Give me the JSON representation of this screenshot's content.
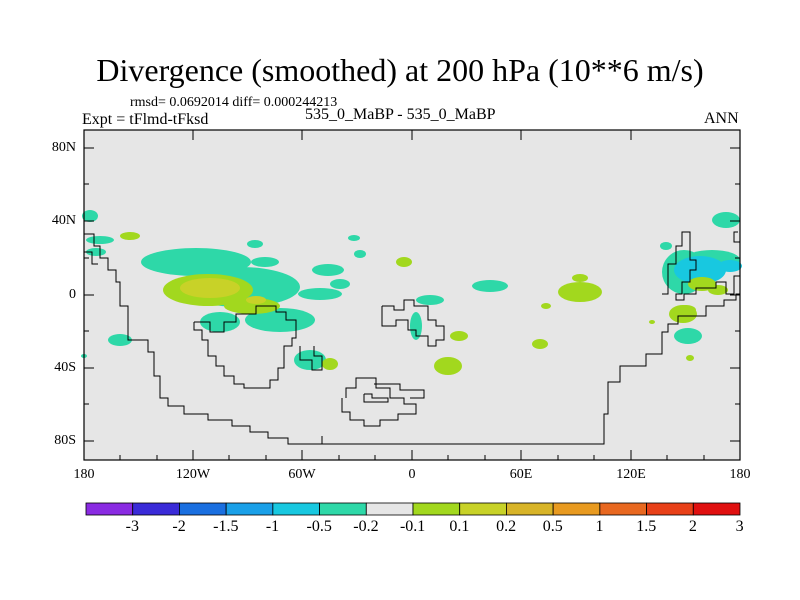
{
  "title": "Divergence (smoothed) at 200 hPa (10**6 m/s)",
  "stats": "rmsd= 0.0692014 diff= 0.000244213",
  "expt": "Expt = tFlmd-tFksd",
  "cases": "535_0_MaBP - 535_0_MaBP",
  "season": "ANN",
  "axes": {
    "y_ticks": [
      "80N",
      "40N",
      "0",
      "40S",
      "80S"
    ],
    "x_ticks": [
      "180",
      "120W",
      "60W",
      "0",
      "60E",
      "120E",
      "180"
    ]
  },
  "colorbar": {
    "labels": [
      "-3",
      "-2",
      "-1.5",
      "-1",
      "-0.5",
      "-0.2",
      "-0.1",
      "0.1",
      "0.2",
      "0.5",
      "1",
      "1.5",
      "2",
      "3"
    ],
    "colors": [
      "#8a2be2",
      "#3a2bd8",
      "#1a6fe0",
      "#1aa0e8",
      "#18c8e0",
      "#2ed8a8",
      "#e6e6e6",
      "#a2d81e",
      "#c8d228",
      "#d8b428",
      "#e89a20",
      "#e86820",
      "#e84018",
      "#e01010"
    ]
  },
  "colors": {
    "ocean_background": "#e6e6e6",
    "coastline": "#000000"
  }
}
